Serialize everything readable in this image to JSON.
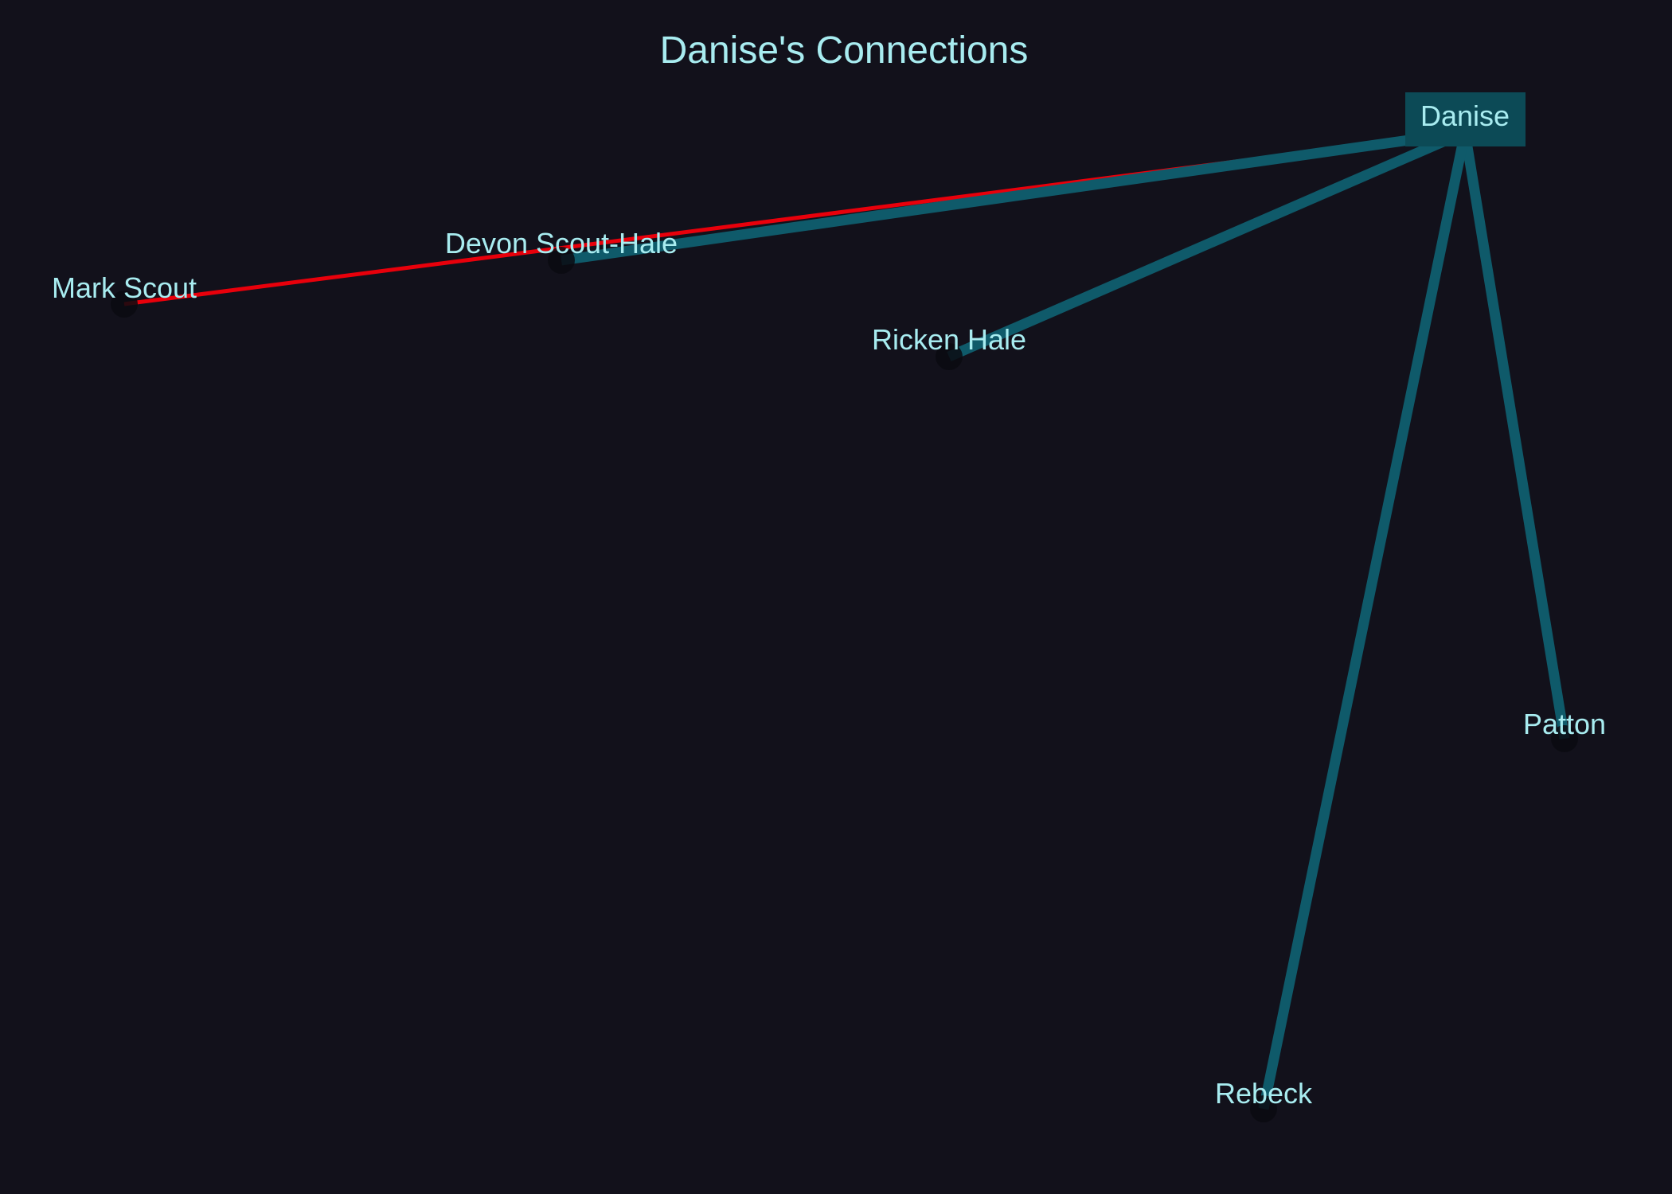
{
  "title": "Danise's Connections",
  "colors": {
    "background": "#12111b",
    "text": "#a8ecf0",
    "edge": "#0f5a6a",
    "edge_highlight": "#e8000b",
    "center_box": "#0c4a56",
    "node": "#0b0b10"
  },
  "center": {
    "id": "danise",
    "label": "Danise"
  },
  "nodes": [
    {
      "id": "mark",
      "label": "Mark Scout"
    },
    {
      "id": "devon",
      "label": "Devon Scout-Hale"
    },
    {
      "id": "ricken",
      "label": "Ricken Hale"
    },
    {
      "id": "patton",
      "label": "Patton"
    },
    {
      "id": "rebeck",
      "label": "Rebeck"
    }
  ],
  "edges": [
    {
      "from": "danise",
      "to": "mark",
      "style": "highlight"
    },
    {
      "from": "danise",
      "to": "devon",
      "style": "normal"
    },
    {
      "from": "danise",
      "to": "ricken",
      "style": "normal"
    },
    {
      "from": "danise",
      "to": "patton",
      "style": "normal"
    },
    {
      "from": "danise",
      "to": "rebeck",
      "style": "normal"
    }
  ]
}
